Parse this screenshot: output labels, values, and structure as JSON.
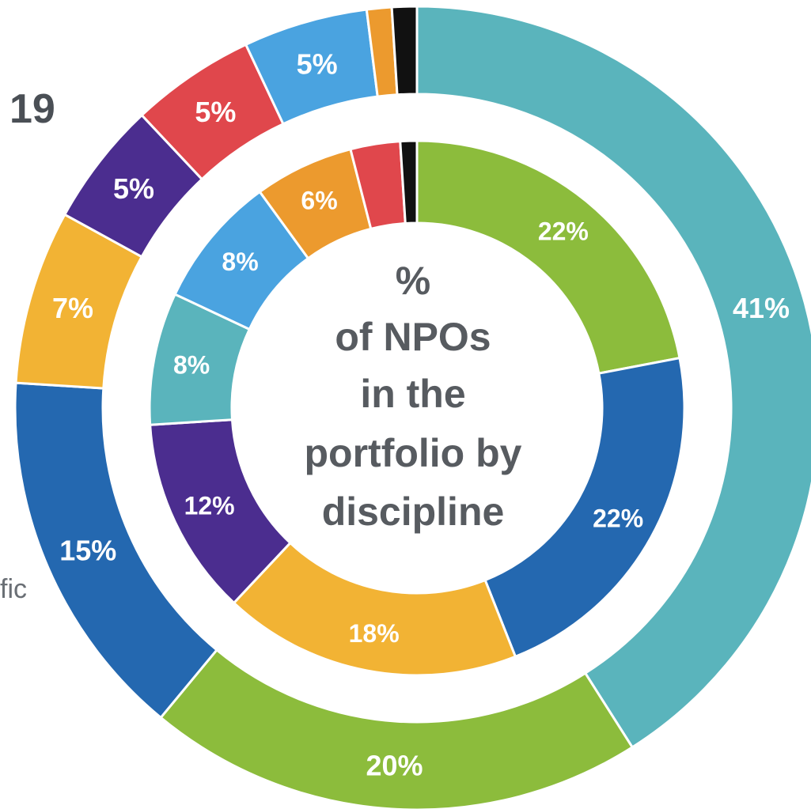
{
  "fragments": {
    "top": "19",
    "side": "fic"
  },
  "center_text": [
    "%",
    "of NPOs",
    "in the",
    "portfolio by",
    "discipline"
  ],
  "chart_data": [
    {
      "type": "pie",
      "ring": "outer",
      "slices": [
        {
          "value": 41,
          "label": "41%",
          "color": "#5ab4bc"
        },
        {
          "value": 20,
          "label": "20%",
          "color": "#8cbc3c"
        },
        {
          "value": 15,
          "label": "15%",
          "color": "#2468b0"
        },
        {
          "value": 7,
          "label": "7%",
          "color": "#f2b334"
        },
        {
          "value": 5,
          "label": "5%",
          "color": "#4b2d8f"
        },
        {
          "value": 5,
          "label": "5%",
          "color": "#e0474c"
        },
        {
          "value": 5,
          "label": "5%",
          "color": "#4aa3e0"
        },
        {
          "value": 1,
          "label": "",
          "color": "#ec9a2e"
        },
        {
          "value": 1,
          "label": "",
          "color": "#111111"
        }
      ]
    },
    {
      "type": "pie",
      "ring": "inner",
      "slices": [
        {
          "value": 22,
          "label": "22%",
          "color": "#8cbc3c"
        },
        {
          "value": 22,
          "label": "22%",
          "color": "#2468b0"
        },
        {
          "value": 18,
          "label": "18%",
          "color": "#f2b334"
        },
        {
          "value": 12,
          "label": "12%",
          "color": "#4b2d8f"
        },
        {
          "value": 8,
          "label": "8%",
          "color": "#5ab4bc"
        },
        {
          "value": 8,
          "label": "8%",
          "color": "#4aa3e0"
        },
        {
          "value": 6,
          "label": "6%",
          "color": "#ec9a2e"
        },
        {
          "value": 3,
          "label": "",
          "color": "#e0474c"
        },
        {
          "value": 1,
          "label": "",
          "color": "#111111"
        }
      ]
    }
  ]
}
